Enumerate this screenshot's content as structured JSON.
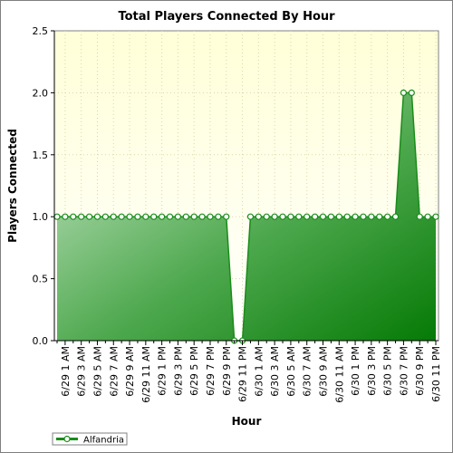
{
  "chart_data": {
    "type": "area",
    "title": "Total Players Connected By Hour",
    "xlabel": "Hour",
    "ylabel": "Players Connected",
    "ylim": [
      0,
      2.5
    ],
    "yticks": [
      "0.0",
      "0.5",
      "1.0",
      "1.5",
      "2.0",
      "2.5"
    ],
    "grid": true,
    "legend_position": "bottom-left",
    "xtick_labels": [
      "6/29 1 AM",
      "6/29 3 AM",
      "6/29 5 AM",
      "6/29 7 AM",
      "6/29 9 AM",
      "6/29 11 AM",
      "6/29 1 PM",
      "6/29 3 PM",
      "6/29 5 PM",
      "6/29 7 PM",
      "6/29 9 PM",
      "6/29 11 PM",
      "6/30 1 AM",
      "6/30 3 AM",
      "6/30 5 AM",
      "6/30 7 AM",
      "6/30 9 AM",
      "6/30 11 AM",
      "6/30 1 PM",
      "6/30 3 PM",
      "6/30 5 PM",
      "6/30 7 PM",
      "6/30 9 PM",
      "6/30 11 PM"
    ],
    "x": [
      "6/29 12 AM",
      "6/29 1 AM",
      "6/29 2 AM",
      "6/29 3 AM",
      "6/29 4 AM",
      "6/29 5 AM",
      "6/29 6 AM",
      "6/29 7 AM",
      "6/29 8 AM",
      "6/29 9 AM",
      "6/29 10 AM",
      "6/29 11 AM",
      "6/29 12 PM",
      "6/29 1 PM",
      "6/29 2 PM",
      "6/29 3 PM",
      "6/29 4 PM",
      "6/29 5 PM",
      "6/29 6 PM",
      "6/29 7 PM",
      "6/29 8 PM",
      "6/29 9 PM",
      "6/29 10 PM",
      "6/29 11 PM",
      "6/30 12 AM",
      "6/30 1 AM",
      "6/30 2 AM",
      "6/30 3 AM",
      "6/30 4 AM",
      "6/30 5 AM",
      "6/30 6 AM",
      "6/30 7 AM",
      "6/30 8 AM",
      "6/30 9 AM",
      "6/30 10 AM",
      "6/30 11 AM",
      "6/30 12 PM",
      "6/30 1 PM",
      "6/30 2 PM",
      "6/30 3 PM",
      "6/30 4 PM",
      "6/30 5 PM",
      "6/30 6 PM",
      "6/30 7 PM",
      "6/30 8 PM",
      "6/30 9 PM",
      "6/30 10 PM",
      "6/30 11 PM"
    ],
    "series": [
      {
        "name": "Alfandria",
        "color": "#1a8c1a",
        "values": [
          1,
          1,
          1,
          1,
          1,
          1,
          1,
          1,
          1,
          1,
          1,
          1,
          1,
          1,
          1,
          1,
          1,
          1,
          1,
          1,
          1,
          1,
          0,
          0,
          1,
          1,
          1,
          1,
          1,
          1,
          1,
          1,
          1,
          1,
          1,
          1,
          1,
          1,
          1,
          1,
          1,
          1,
          1,
          2,
          2,
          1,
          1,
          1
        ]
      }
    ],
    "colors": {
      "plot_bg_top": "#ffffd8",
      "plot_bg_bottom": "#ffffff",
      "fill_light": "#c8e6c8",
      "fill_dark": "#0a7a0a",
      "line": "#1a8c1a"
    }
  }
}
